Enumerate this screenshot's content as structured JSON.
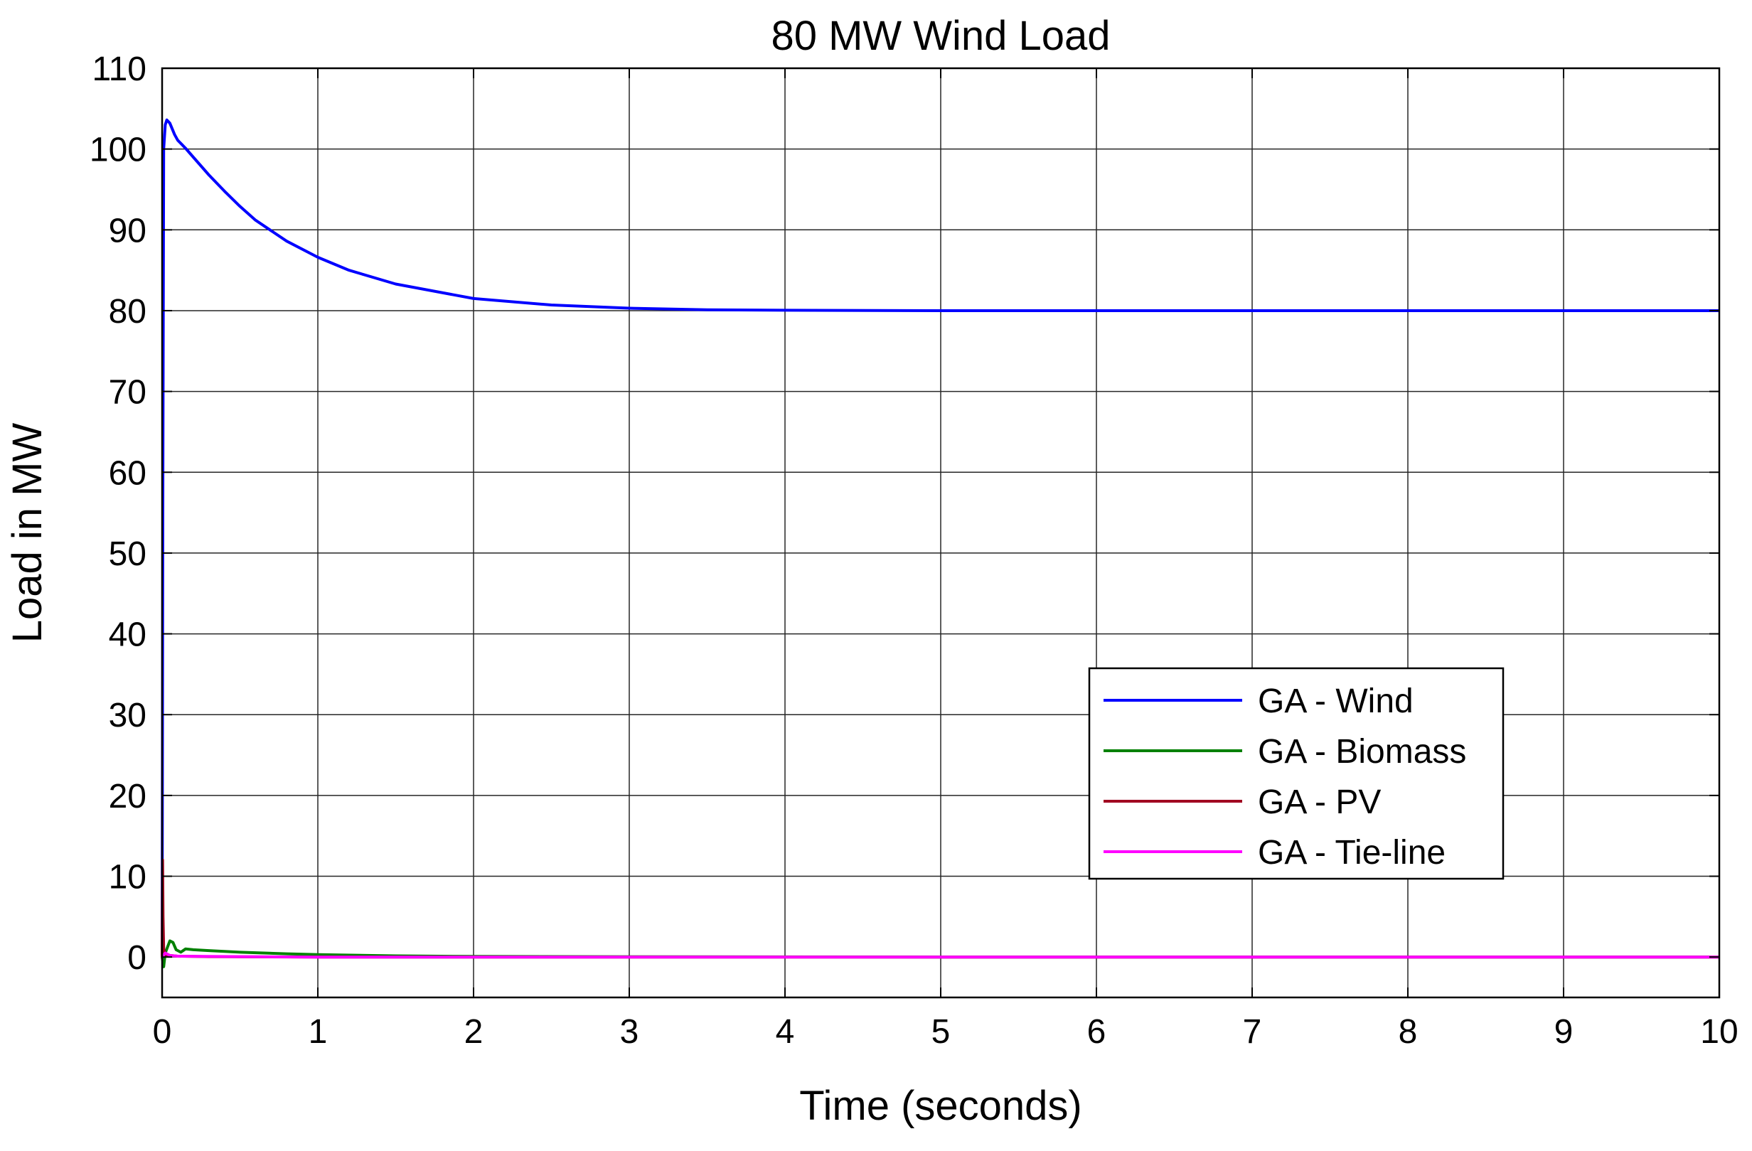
{
  "chart_data": {
    "type": "line",
    "title": "80 MW Wind Load",
    "xlabel": "Time (seconds)",
    "ylabel": "Load in MW",
    "xlim": [
      0,
      10
    ],
    "ylim": [
      -5,
      110
    ],
    "xticks": [
      0,
      1,
      2,
      3,
      4,
      5,
      6,
      7,
      8,
      9,
      10
    ],
    "yticks": [
      0,
      10,
      20,
      30,
      40,
      50,
      60,
      70,
      80,
      90,
      100,
      110
    ],
    "xtick_labels": [
      "0",
      "1",
      "2",
      "3",
      "4",
      "5",
      "6",
      "7",
      "8",
      "9",
      "10"
    ],
    "ytick_labels": [
      "0",
      "10",
      "20",
      "30",
      "40",
      "50",
      "60",
      "70",
      "80",
      "90",
      "100",
      "110"
    ],
    "grid": true,
    "legend_position": "lower-right",
    "series": [
      {
        "name": "GA - Wind",
        "color": "#0000ff",
        "x": [
          0,
          0.005,
          0.01,
          0.02,
          0.03,
          0.05,
          0.08,
          0.1,
          0.15,
          0.2,
          0.3,
          0.4,
          0.5,
          0.6,
          0.8,
          1.0,
          1.2,
          1.5,
          2.0,
          2.5,
          3.0,
          3.5,
          4.0,
          5.0,
          6.0,
          7.0,
          8.0,
          9.0,
          10.0
        ],
        "y": [
          0,
          60,
          100,
          103,
          103.6,
          103.2,
          101.8,
          101.1,
          100.1,
          99.0,
          96.8,
          94.8,
          92.9,
          91.2,
          88.6,
          86.6,
          85.0,
          83.3,
          81.5,
          80.7,
          80.3,
          80.1,
          80.05,
          80,
          80,
          80,
          80,
          80,
          80
        ]
      },
      {
        "name": "GA - Biomass",
        "color": "#008000",
        "x": [
          0,
          0.01,
          0.02,
          0.03,
          0.05,
          0.07,
          0.09,
          0.12,
          0.15,
          0.2,
          0.3,
          0.5,
          0.8,
          1.0,
          1.5,
          2.0,
          3.0,
          5.0,
          10.0
        ],
        "y": [
          0,
          -1.2,
          0.5,
          1.0,
          2.0,
          1.8,
          0.9,
          0.6,
          1.0,
          0.9,
          0.8,
          0.6,
          0.4,
          0.3,
          0.15,
          0.08,
          0.03,
          0,
          0
        ]
      },
      {
        "name": "GA - PV",
        "color": "#a00020",
        "x": [
          0,
          0.003,
          0.006,
          0.01,
          0.02,
          0.05,
          0.1,
          0.3,
          1.0,
          10.0
        ],
        "y": [
          0,
          12,
          5,
          1,
          0.3,
          0.2,
          0.1,
          0.05,
          0,
          0
        ]
      },
      {
        "name": "GA - Tie-line",
        "color": "#ff00ff",
        "x": [
          0,
          0.02,
          0.05,
          0.1,
          0.5,
          1.0,
          10.0
        ],
        "y": [
          0,
          0.5,
          0.2,
          0.1,
          0.05,
          0,
          0
        ]
      }
    ]
  }
}
